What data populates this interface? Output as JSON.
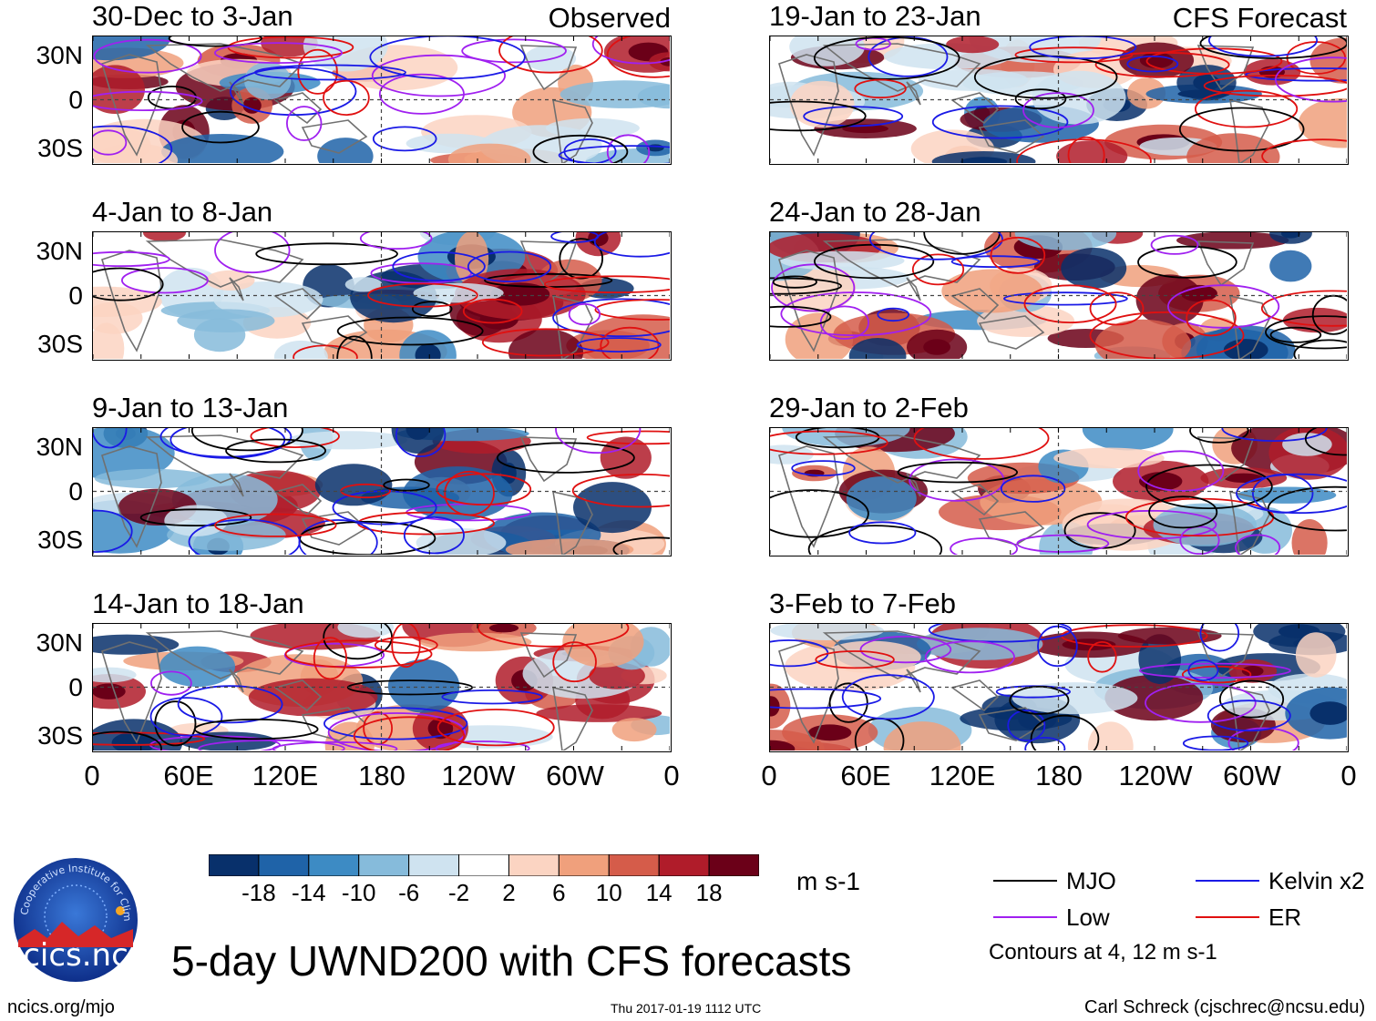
{
  "chart_data": {
    "type": "heatmap",
    "title": "5-day UWND200 with CFS forecasts",
    "units": "m s-1",
    "colorbar": {
      "ticks": [
        "-18",
        "-14",
        "-10",
        "-6",
        "-2",
        "2",
        "6",
        "10",
        "14",
        "18"
      ],
      "colors": [
        "#08306b",
        "#1f63a8",
        "#3d8bc4",
        "#86bbdb",
        "#cfe3f0",
        "#ffffff",
        "#fbd4c2",
        "#f0a07c",
        "#d55c4a",
        "#b01c2a",
        "#6b0018"
      ]
    },
    "x_ticks": [
      "0",
      "60E",
      "120E",
      "180",
      "120W",
      "60W",
      "0"
    ],
    "y_ticks": [
      "30N",
      "0",
      "30S"
    ],
    "observed_label": "Observed",
    "forecast_label": "CFS Forecast",
    "observed_panels": [
      "30-Dec to 3-Jan",
      "4-Jan to 8-Jan",
      "9-Jan to 13-Jan",
      "14-Jan to 18-Jan"
    ],
    "forecast_panels": [
      "19-Jan to 23-Jan",
      "24-Jan to 28-Jan",
      "29-Jan to 2-Feb",
      "3-Feb to 7-Feb"
    ],
    "legend": [
      {
        "name": "MJO",
        "color": "#000000"
      },
      {
        "name": "Kelvin x2",
        "color": "#1a1ae6"
      },
      {
        "name": "Low",
        "color": "#a020f0"
      },
      {
        "name": "ER",
        "color": "#e01010"
      }
    ],
    "contour_note": "Contours at 4, 12 m s-1"
  },
  "footer": {
    "logo_text": "cics.nc",
    "logo_ring": "Cooperative Institute for Climate and Satellites",
    "url": "ncics.org/mjo",
    "timestamp": "Thu 2017-01-19 1112 UTC",
    "author": "Carl Schreck (cjschrec@ncsu.edu)"
  }
}
